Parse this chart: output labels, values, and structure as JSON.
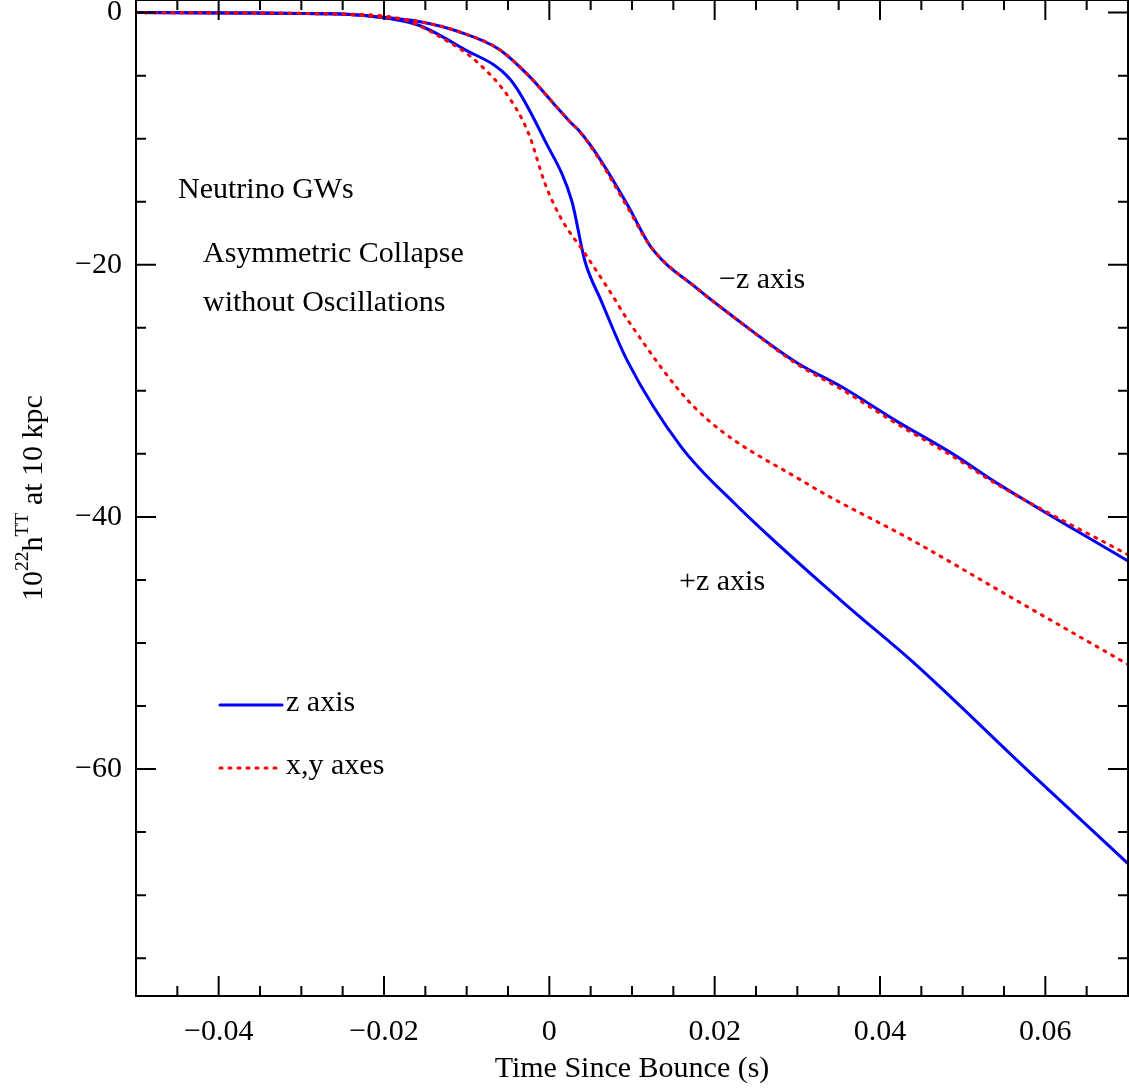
{
  "chart_data": {
    "type": "line",
    "xlabel": "Time Since Bounce (s)",
    "ylabel": "10$^{22}$h$^{TT}$ at 10 kpc",
    "xlim": [
      -0.05,
      0.07
    ],
    "xticks": [
      {
        "value": -0.045,
        "label": null
      },
      -0.04,
      {
        "value": -0.035,
        "label": null
      },
      {
        "value": -0.03,
        "label": null
      },
      {
        "value": -0.025,
        "label": null
      },
      -0.02,
      {
        "value": -0.015,
        "label": null
      },
      {
        "value": -0.01,
        "label": null
      },
      {
        "value": -0.005,
        "label": null
      },
      0,
      {
        "value": 0.005,
        "label": null
      },
      {
        "value": 0.01,
        "label": null
      },
      {
        "value": 0.015,
        "label": null
      },
      0.02,
      {
        "value": 0.025,
        "label": null
      },
      {
        "value": 0.03,
        "label": null
      },
      {
        "value": 0.035,
        "label": null
      },
      0.04,
      {
        "value": 0.045,
        "label": null
      },
      {
        "value": 0.05,
        "label": null
      },
      {
        "value": 0.055,
        "label": null
      },
      0.06,
      {
        "value": 0.065,
        "label": null
      }
    ],
    "ylim": [
      -78,
      1
    ],
    "yticks": [
      0,
      {
        "value": -5,
        "label": null
      },
      {
        "value": -10,
        "label": null
      },
      {
        "value": -15,
        "label": null
      },
      -20,
      {
        "value": -25,
        "label": null
      },
      {
        "value": -30,
        "label": null
      },
      {
        "value": -35,
        "label": null
      },
      -40,
      {
        "value": -45,
        "label": null
      },
      {
        "value": -50,
        "label": null
      },
      {
        "value": -55,
        "label": null
      },
      -60,
      {
        "value": -65,
        "label": null
      },
      {
        "value": -70,
        "label": null
      },
      {
        "value": -75,
        "label": null
      }
    ],
    "legend": "bottom left",
    "series": [
      {
        "name": "z axis",
        "color": "#0000ff",
        "line_style": "solid",
        "x": [
          -0.05,
          -0.0266,
          -0.0213,
          -0.0158,
          -0.011,
          -0.0061,
          -0.0025,
          0.0005,
          0.0027,
          0.0035,
          0.0059,
          0.0095,
          0.0123,
          0.0179,
          0.0222,
          0.03,
          0.0354,
          0.042,
          0.0488,
          0.0541,
          0.07
        ],
        "values": [
          0,
          -0.1,
          -0.3,
          -0.7,
          -1.5,
          -2.9,
          -5.0,
          -7.2,
          -8.8,
          -9.3,
          -11.4,
          -15.3,
          -18.6,
          -21.9,
          -24.1,
          -27.8,
          -29.7,
          -32.4,
          -35.0,
          -37.3,
          -43.5
        ]
      },
      {
        "color": "#0000ff",
        "line_style": "solid",
        "x": [
          -0.05,
          -0.0266,
          -0.0213,
          -0.0158,
          -0.0106,
          -0.0046,
          -0.0005,
          0.0027,
          0.0043,
          0.0063,
          0.0095,
          0.0159,
          0.0222,
          0.0354,
          0.0443,
          0.0577,
          0.07
        ],
        "values": [
          0,
          -0.1,
          -0.3,
          -1.0,
          -2.8,
          -5.4,
          -10.2,
          -14.9,
          -19.7,
          -22.9,
          -27.7,
          -34.4,
          -38.8,
          -46.7,
          -51.7,
          -60.0,
          -67.5
        ]
      },
      {
        "name": "x,y axes",
        "color": "#ff0000",
        "line_style": "dotted",
        "x": [
          -0.05,
          -0.0266,
          -0.0213,
          -0.0158,
          -0.011,
          -0.0061,
          -0.0025,
          0.0005,
          0.0027,
          0.0035,
          0.0059,
          0.0095,
          0.0123,
          0.0179,
          0.0222,
          0.03,
          0.0354,
          0.042,
          0.0488,
          0.0541,
          0.07
        ],
        "values": [
          0,
          -0.1,
          -0.3,
          -0.7,
          -1.5,
          -2.9,
          -5.0,
          -7.2,
          -8.8,
          -9.3,
          -11.5,
          -15.5,
          -18.6,
          -21.9,
          -24.1,
          -27.9,
          -29.9,
          -32.6,
          -35.2,
          -37.4,
          -43.0
        ]
      },
      {
        "color": "#ff0000",
        "line_style": "dotted",
        "x": [
          -0.05,
          -0.0266,
          -0.0186,
          -0.0125,
          -0.0086,
          -0.0046,
          -0.0025,
          -0.0005,
          0.0014,
          0.0043,
          0.0075,
          0.0095,
          0.0177,
          0.031,
          0.0443,
          0.0559,
          0.07
        ],
        "values": [
          0,
          -0.1,
          -0.4,
          -2.2,
          -4.0,
          -7.0,
          -9.6,
          -13.6,
          -16.3,
          -19.1,
          -22.3,
          -24.4,
          -31.4,
          -37.3,
          -42.0,
          -46.4,
          -51.7
        ]
      }
    ],
    "annotations": [
      "Neutrino GWs",
      "Asymmetric Collapse\nwithout Oscillations",
      "−z axis",
      "+z axis"
    ]
  }
}
